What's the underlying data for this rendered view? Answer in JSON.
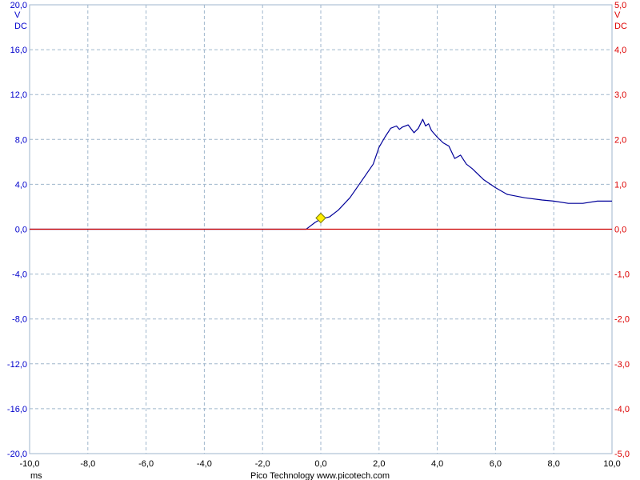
{
  "chart_data": {
    "type": "line",
    "title": "",
    "footer": "Pico Technology  www.picotech.com",
    "x_unit": "ms",
    "xlim": [
      -10,
      10
    ],
    "x_ticks": [
      "-10,0",
      "-8,0",
      "-6,0",
      "-4,0",
      "-2,0",
      "0,0",
      "2,0",
      "4,0",
      "6,0",
      "8,0",
      "10,0"
    ],
    "grid": true,
    "axes": {
      "left": {
        "color": "#0000cc",
        "unit_label": "V",
        "coupling_label": "DC",
        "ylim": [
          -20,
          20
        ],
        "ticks": [
          "20,0",
          "16,0",
          "12,0",
          "8,0",
          "4,0",
          "0,0",
          "-4,0",
          "-8,0",
          "-12,0",
          "-16,0",
          "-20,0"
        ]
      },
      "right": {
        "color": "#dd0000",
        "unit_label": "V",
        "coupling_label": "DC",
        "ylim": [
          -5,
          5
        ],
        "ticks": [
          "5,0",
          "4,0",
          "3,0",
          "2,0",
          "1,0",
          "0,0",
          "-1,0",
          "-2,0",
          "-3,0",
          "-4,0",
          "-5,0"
        ]
      }
    },
    "trigger_marker": {
      "x": 0.0,
      "y": 1.0,
      "color": "#ffee00"
    },
    "series": [
      {
        "axis": "left",
        "color": "#000099",
        "x": [
          -10,
          -2.6,
          -0.5,
          -0.4,
          -0.2,
          0,
          0.3,
          0.6,
          1.0,
          1.4,
          1.8,
          2.0,
          2.2,
          2.4,
          2.6,
          2.7,
          2.8,
          3.0,
          3.2,
          3.35,
          3.5,
          3.6,
          3.7,
          3.8,
          4.0,
          4.2,
          4.4,
          4.6,
          4.8,
          5.0,
          5.2,
          5.6,
          6.0,
          6.4,
          7.0,
          7.6,
          8.0,
          8.5,
          9.0,
          9.5,
          10.0
        ],
        "y": [
          0,
          0,
          0,
          0.2,
          0.6,
          0.9,
          1.1,
          1.7,
          2.8,
          4.3,
          5.8,
          7.3,
          8.2,
          9.0,
          9.2,
          8.9,
          9.1,
          9.3,
          8.6,
          9.0,
          9.8,
          9.2,
          9.4,
          8.8,
          8.2,
          7.7,
          7.4,
          6.3,
          6.6,
          5.8,
          5.4,
          4.4,
          3.7,
          3.1,
          2.8,
          2.6,
          2.5,
          2.3,
          2.3,
          2.5,
          2.5
        ]
      },
      {
        "axis": "right",
        "color": "#cc0000",
        "x": [
          -10,
          10
        ],
        "y": [
          0,
          0
        ]
      }
    ]
  }
}
